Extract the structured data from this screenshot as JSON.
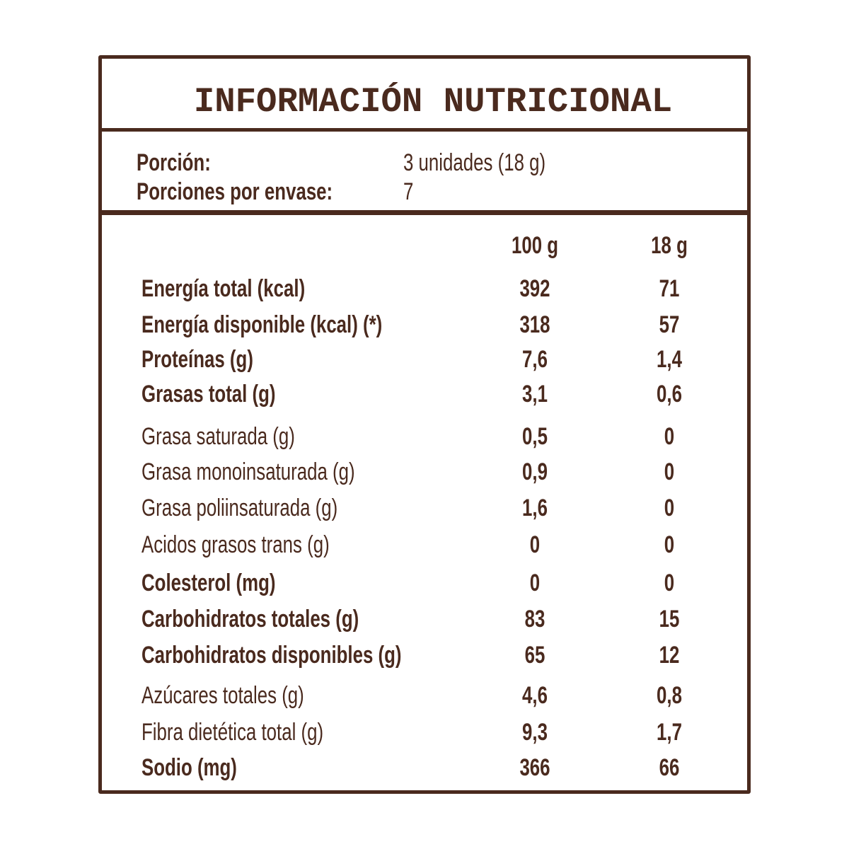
{
  "header": {
    "title": "INFORMACIÓN NUTRICIONAL"
  },
  "serving": [
    {
      "label": "Porción:",
      "value": "3 unidades (18 g)"
    },
    {
      "label": "Porciones por envase:",
      "value": "7"
    }
  ],
  "table": {
    "columns": [
      "100 g",
      "18 g"
    ],
    "rows": [
      {
        "label": "Energía total (kcal)",
        "per_100g": "392",
        "per_portion": "71",
        "bold": true
      },
      {
        "label": "Energía disponible (kcal) (*)",
        "per_100g": "318",
        "per_portion": "57",
        "bold": true
      },
      {
        "label": "Proteínas (g)",
        "per_100g": "7,6",
        "per_portion": "1,4",
        "bold": true
      },
      {
        "label": "Grasas total (g)",
        "per_100g": "3,1",
        "per_portion": "0,6",
        "bold": true
      },
      {
        "label": "Grasa saturada (g)",
        "per_100g": "0,5",
        "per_portion": "0",
        "bold": false
      },
      {
        "label": "Grasa monoinsaturada (g)",
        "per_100g": "0,9",
        "per_portion": "0",
        "bold": false
      },
      {
        "label": "Grasa poliinsaturada (g)",
        "per_100g": "1,6",
        "per_portion": "0",
        "bold": false
      },
      {
        "label": "Acidos grasos trans (g)",
        "per_100g": "0",
        "per_portion": "0",
        "bold": false
      },
      {
        "label": "Colesterol (mg)",
        "per_100g": "0",
        "per_portion": "0",
        "bold": true
      },
      {
        "label": "Carbohidratos totales (g)",
        "per_100g": "83",
        "per_portion": "15",
        "bold": true
      },
      {
        "label": "Carbohidratos disponibles (g)",
        "per_100g": "65",
        "per_portion": "12",
        "bold": true
      },
      {
        "label": "Azúcares totales (g)",
        "per_100g": "4,6",
        "per_portion": "0,8",
        "bold": false
      },
      {
        "label": "Fibra dietética total (g)",
        "per_100g": "9,3",
        "per_portion": "1,7",
        "bold": false
      },
      {
        "label": "Sodio (mg)",
        "per_100g": "366",
        "per_portion": "66",
        "bold": true
      }
    ]
  }
}
